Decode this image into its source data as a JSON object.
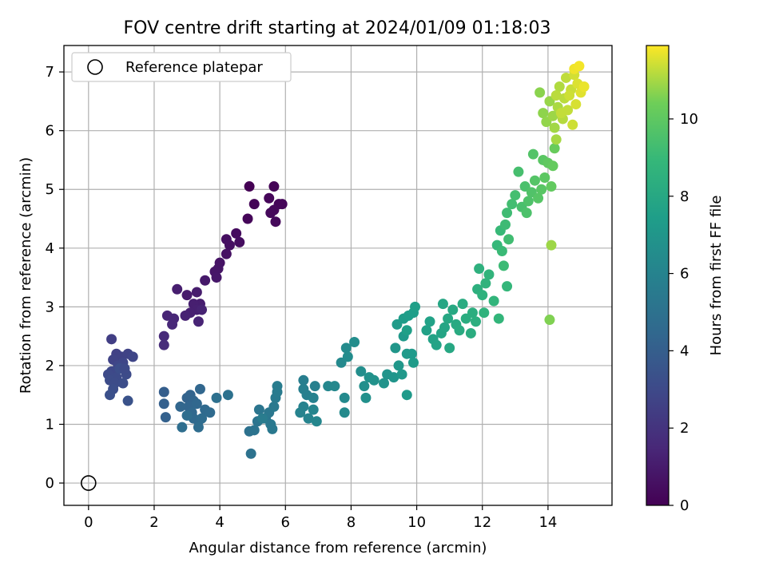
{
  "chart_data": {
    "type": "scatter",
    "title": "FOV centre drift starting at 2024/01/09 01:18:03",
    "xlabel": "Angular distance from reference (arcmin)",
    "ylabel": "Rotation from reference (arcmin)",
    "xlim": [
      -0.75,
      15.95
    ],
    "ylim": [
      -0.38,
      7.45
    ],
    "xticks": [
      0,
      2,
      4,
      6,
      8,
      10,
      12,
      14
    ],
    "yticks": [
      0,
      1,
      2,
      3,
      4,
      5,
      6,
      7
    ],
    "grid": true,
    "colormap": "viridis",
    "legend": {
      "placement": "top-left",
      "entries": [
        "Reference platepar"
      ]
    },
    "colorbar": {
      "label": "Hours from first FF file",
      "range": [
        0,
        11.9
      ],
      "ticks": [
        0,
        2,
        4,
        6,
        8,
        10
      ]
    },
    "reference_point": {
      "x": 0,
      "y": 0,
      "label": "Reference platepar"
    },
    "series": [
      {
        "points": [
          [
            4.9,
            5.05,
            0.0
          ],
          [
            5.05,
            4.75,
            0.1
          ],
          [
            4.85,
            4.5,
            0.2
          ],
          [
            5.65,
            5.05,
            0.1
          ],
          [
            5.5,
            4.85,
            0.2
          ],
          [
            5.8,
            4.75,
            0.15
          ],
          [
            5.65,
            4.65,
            0.25
          ],
          [
            5.55,
            4.6,
            0.3
          ],
          [
            5.7,
            4.45,
            0.3
          ],
          [
            5.9,
            4.75,
            0.2
          ],
          [
            4.5,
            4.25,
            0.4
          ],
          [
            4.6,
            4.1,
            0.45
          ],
          [
            4.2,
            4.15,
            0.5
          ],
          [
            4.3,
            4.05,
            0.55
          ],
          [
            4.2,
            3.9,
            0.6
          ],
          [
            4.0,
            3.75,
            0.7
          ],
          [
            3.95,
            3.65,
            0.75
          ],
          [
            3.85,
            3.6,
            0.8
          ],
          [
            3.9,
            3.5,
            0.85
          ],
          [
            3.55,
            3.45,
            0.9
          ],
          [
            3.0,
            3.2,
            1.0
          ],
          [
            3.3,
            3.25,
            1.05
          ],
          [
            3.4,
            3.05,
            1.1
          ],
          [
            2.7,
            3.3,
            1.1
          ],
          [
            3.2,
            3.05,
            1.15
          ],
          [
            3.3,
            2.95,
            1.2
          ],
          [
            3.1,
            2.9,
            1.2
          ],
          [
            2.95,
            2.85,
            1.3
          ],
          [
            3.45,
            2.95,
            1.3
          ],
          [
            3.35,
            2.75,
            1.35
          ],
          [
            2.4,
            2.85,
            1.4
          ],
          [
            2.6,
            2.8,
            1.45
          ],
          [
            2.55,
            2.7,
            1.5
          ],
          [
            2.3,
            2.5,
            1.6
          ],
          [
            2.3,
            2.35,
            1.7
          ],
          [
            0.7,
            2.45,
            2.5
          ],
          [
            0.85,
            2.2,
            2.6
          ],
          [
            1.0,
            2.15,
            2.65
          ],
          [
            1.2,
            2.2,
            2.7
          ],
          [
            0.75,
            2.1,
            2.7
          ],
          [
            1.35,
            2.15,
            2.8
          ],
          [
            1.05,
            2.05,
            2.85
          ],
          [
            0.9,
            2.0,
            2.9
          ],
          [
            0.7,
            1.9,
            2.95
          ],
          [
            0.6,
            1.85,
            3.0
          ],
          [
            0.85,
            1.8,
            3.05
          ],
          [
            1.15,
            1.85,
            3.05
          ],
          [
            0.65,
            1.75,
            3.1
          ],
          [
            0.8,
            1.7,
            3.1
          ],
          [
            1.05,
            1.7,
            3.15
          ],
          [
            0.75,
            1.6,
            3.2
          ],
          [
            0.65,
            1.5,
            3.3
          ],
          [
            1.2,
            1.4,
            3.4
          ],
          [
            0.95,
            1.95,
            3.2
          ],
          [
            1.1,
            1.95,
            3.0
          ],
          [
            2.3,
            1.55,
            4.0
          ],
          [
            2.3,
            1.35,
            4.1
          ],
          [
            2.35,
            1.12,
            4.15
          ],
          [
            3.0,
            1.45,
            4.2
          ],
          [
            3.1,
            1.5,
            4.25
          ],
          [
            3.2,
            1.4,
            4.3
          ],
          [
            3.05,
            1.3,
            4.35
          ],
          [
            2.8,
            1.3,
            4.4
          ],
          [
            3.4,
            1.6,
            4.4
          ],
          [
            3.3,
            1.35,
            4.45
          ],
          [
            3.15,
            1.2,
            4.5
          ],
          [
            3.2,
            1.1,
            4.55
          ],
          [
            3.35,
            1.05,
            4.6
          ],
          [
            3.55,
            1.25,
            4.6
          ],
          [
            3.7,
            1.2,
            4.65
          ],
          [
            3.45,
            1.1,
            4.7
          ],
          [
            3.35,
            0.95,
            4.75
          ],
          [
            2.85,
            0.95,
            4.8
          ],
          [
            3.0,
            1.15,
            4.8
          ],
          [
            3.9,
            1.45,
            4.9
          ],
          [
            4.25,
            1.5,
            4.95
          ],
          [
            4.9,
            0.88,
            5.0
          ],
          [
            4.95,
            0.5,
            5.05
          ],
          [
            5.05,
            0.9,
            5.1
          ],
          [
            5.15,
            1.05,
            5.15
          ],
          [
            5.2,
            1.25,
            5.2
          ],
          [
            5.4,
            1.1,
            5.25
          ],
          [
            5.5,
            1.2,
            5.3
          ],
          [
            5.55,
            1.0,
            5.35
          ],
          [
            5.6,
            0.92,
            5.4
          ],
          [
            5.65,
            1.3,
            5.45
          ],
          [
            5.7,
            1.45,
            5.5
          ],
          [
            5.75,
            1.55,
            5.55
          ],
          [
            5.75,
            1.65,
            5.6
          ],
          [
            5.3,
            1.1,
            5.6
          ],
          [
            6.55,
            1.75,
            5.7
          ],
          [
            6.55,
            1.6,
            5.75
          ],
          [
            6.65,
            1.5,
            5.8
          ],
          [
            6.9,
            1.65,
            5.85
          ],
          [
            6.85,
            1.45,
            5.9
          ],
          [
            6.55,
            1.3,
            5.95
          ],
          [
            6.45,
            1.2,
            6.0
          ],
          [
            6.7,
            1.1,
            6.05
          ],
          [
            6.85,
            1.25,
            6.1
          ],
          [
            6.95,
            1.05,
            6.15
          ],
          [
            7.3,
            1.65,
            6.2
          ],
          [
            7.5,
            1.65,
            6.25
          ],
          [
            7.7,
            2.05,
            6.3
          ],
          [
            7.8,
            1.45,
            6.35
          ],
          [
            7.8,
            1.2,
            6.4
          ],
          [
            7.85,
            2.3,
            6.45
          ],
          [
            7.9,
            2.15,
            6.5
          ],
          [
            8.1,
            2.4,
            6.55
          ],
          [
            8.3,
            1.9,
            6.6
          ],
          [
            8.4,
            1.65,
            6.65
          ],
          [
            8.45,
            1.45,
            6.7
          ],
          [
            8.55,
            1.8,
            6.75
          ],
          [
            8.7,
            1.75,
            6.8
          ],
          [
            9.0,
            1.7,
            6.85
          ],
          [
            9.1,
            1.85,
            6.9
          ],
          [
            9.3,
            1.8,
            6.95
          ],
          [
            9.35,
            2.3,
            7.0
          ],
          [
            9.45,
            2.0,
            7.05
          ],
          [
            9.55,
            1.85,
            7.1
          ],
          [
            9.6,
            2.5,
            7.15
          ],
          [
            9.7,
            2.2,
            7.2
          ],
          [
            9.7,
            1.5,
            7.2
          ],
          [
            9.85,
            2.2,
            7.25
          ],
          [
            9.9,
            2.05,
            7.3
          ],
          [
            9.4,
            2.7,
            7.3
          ],
          [
            9.6,
            2.8,
            7.35
          ],
          [
            9.75,
            2.85,
            7.4
          ],
          [
            9.9,
            2.9,
            7.45
          ],
          [
            9.95,
            3.0,
            7.5
          ],
          [
            9.7,
            2.6,
            7.5
          ],
          [
            10.3,
            2.6,
            7.6
          ],
          [
            10.4,
            2.75,
            7.65
          ],
          [
            10.5,
            2.45,
            7.7
          ],
          [
            10.6,
            2.35,
            7.75
          ],
          [
            10.75,
            2.55,
            7.8
          ],
          [
            10.85,
            2.65,
            7.85
          ],
          [
            10.8,
            3.05,
            7.9
          ],
          [
            10.95,
            2.8,
            7.95
          ],
          [
            11.0,
            2.3,
            8.0
          ],
          [
            11.1,
            2.95,
            8.05
          ],
          [
            11.2,
            2.7,
            8.1
          ],
          [
            11.3,
            2.6,
            8.15
          ],
          [
            11.4,
            3.05,
            8.2
          ],
          [
            11.5,
            2.8,
            8.25
          ],
          [
            11.65,
            2.55,
            8.3
          ],
          [
            11.7,
            2.9,
            8.35
          ],
          [
            11.8,
            2.75,
            8.4
          ],
          [
            11.85,
            3.3,
            8.45
          ],
          [
            11.9,
            3.65,
            8.5
          ],
          [
            12.0,
            3.2,
            8.55
          ],
          [
            12.05,
            2.9,
            8.6
          ],
          [
            12.1,
            3.4,
            8.65
          ],
          [
            12.2,
            3.55,
            8.7
          ],
          [
            12.35,
            3.1,
            8.75
          ],
          [
            12.5,
            2.8,
            8.8
          ],
          [
            12.75,
            3.35,
            8.85
          ],
          [
            12.45,
            4.05,
            8.9
          ],
          [
            12.55,
            4.3,
            9.0
          ],
          [
            12.6,
            3.95,
            9.05
          ],
          [
            12.65,
            3.7,
            9.1
          ],
          [
            12.7,
            4.4,
            9.15
          ],
          [
            12.75,
            4.6,
            9.2
          ],
          [
            12.8,
            4.15,
            9.25
          ],
          [
            12.9,
            4.75,
            9.3
          ],
          [
            13.0,
            4.9,
            9.35
          ],
          [
            13.1,
            5.3,
            9.4
          ],
          [
            13.2,
            4.7,
            9.45
          ],
          [
            13.3,
            5.05,
            9.5
          ],
          [
            13.35,
            4.6,
            9.55
          ],
          [
            13.4,
            4.8,
            9.6
          ],
          [
            13.5,
            4.95,
            9.65
          ],
          [
            13.55,
            5.6,
            9.7
          ],
          [
            13.6,
            5.15,
            9.75
          ],
          [
            13.7,
            4.85,
            9.8
          ],
          [
            13.8,
            5.0,
            9.85
          ],
          [
            13.85,
            5.5,
            9.9
          ],
          [
            13.9,
            5.2,
            9.95
          ],
          [
            14.0,
            5.45,
            10.05
          ],
          [
            14.1,
            5.05,
            10.1
          ],
          [
            14.15,
            5.4,
            10.15
          ],
          [
            14.2,
            5.7,
            10.25
          ],
          [
            14.05,
            2.78,
            10.6
          ],
          [
            14.1,
            4.05,
            10.9
          ],
          [
            13.75,
            6.65,
            10.7
          ],
          [
            13.85,
            6.3,
            10.75
          ],
          [
            13.95,
            6.15,
            10.8
          ],
          [
            14.05,
            6.5,
            10.85
          ],
          [
            14.15,
            6.25,
            10.9
          ],
          [
            14.2,
            6.05,
            10.95
          ],
          [
            14.25,
            5.85,
            11.0
          ],
          [
            14.3,
            6.4,
            11.05
          ],
          [
            14.35,
            6.75,
            11.1
          ],
          [
            14.45,
            6.2,
            11.15
          ],
          [
            14.5,
            6.55,
            11.2
          ],
          [
            14.55,
            6.9,
            11.25
          ],
          [
            14.6,
            6.35,
            11.3
          ],
          [
            14.7,
            6.7,
            11.35
          ],
          [
            14.75,
            6.1,
            11.4
          ],
          [
            14.8,
            6.95,
            11.45
          ],
          [
            14.85,
            6.45,
            11.5
          ],
          [
            14.9,
            6.8,
            11.55
          ],
          [
            15.0,
            6.65,
            11.6
          ],
          [
            15.1,
            6.75,
            11.7
          ],
          [
            14.8,
            7.05,
            11.75
          ],
          [
            14.95,
            7.1,
            11.8
          ],
          [
            14.65,
            6.6,
            11.4
          ],
          [
            14.4,
            6.3,
            11.3
          ],
          [
            14.25,
            6.6,
            11.2
          ]
        ]
      }
    ]
  }
}
